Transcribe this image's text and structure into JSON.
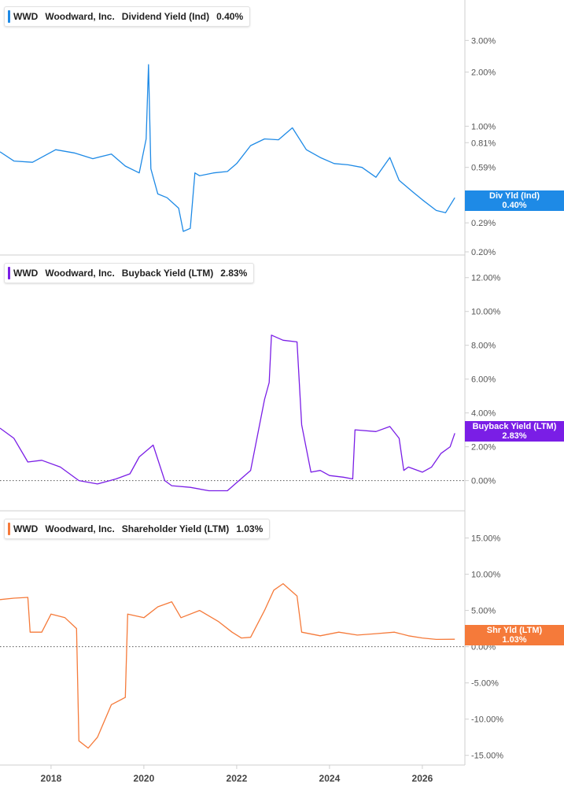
{
  "colors": {
    "dividend": "#1e8ae6",
    "buyback": "#7a1ee6",
    "shareholder": "#f57a3a"
  },
  "x_axis": {
    "ticks": [
      "2018",
      "2020",
      "2022",
      "2024",
      "2026"
    ]
  },
  "chart_data": [
    {
      "type": "line",
      "legend": {
        "ticker": "WWD",
        "company": "Woodward, Inc.",
        "metric": "Dividend Yield (Ind)",
        "value": "0.40%"
      },
      "tag": {
        "label": "Div Yld (Ind)",
        "value": "0.40%"
      },
      "y_scale": "log",
      "ylim": [
        0.2,
        4.2
      ],
      "y_ticks": [
        "3.00%",
        "2.00%",
        "1.00%",
        "0.81%",
        "0.59%",
        "0.37%",
        "0.29%",
        "0.20%"
      ],
      "y_tick_values": [
        3.0,
        2.0,
        1.0,
        0.81,
        0.59,
        0.37,
        0.29,
        0.2
      ],
      "x": [
        2016.9,
        2017.2,
        2017.6,
        2018.1,
        2018.5,
        2018.9,
        2019.3,
        2019.6,
        2019.9,
        2020.05,
        2020.1,
        2020.15,
        2020.3,
        2020.5,
        2020.75,
        2020.85,
        2021.0,
        2021.1,
        2021.2,
        2021.5,
        2021.8,
        2022.0,
        2022.3,
        2022.6,
        2022.9,
        2023.2,
        2023.5,
        2023.8,
        2024.1,
        2024.4,
        2024.7,
        2025.0,
        2025.3,
        2025.5,
        2025.8,
        2026.0,
        2026.3,
        2026.5,
        2026.7
      ],
      "y": [
        0.72,
        0.64,
        0.63,
        0.74,
        0.71,
        0.66,
        0.7,
        0.6,
        0.55,
        0.85,
        2.2,
        0.58,
        0.42,
        0.4,
        0.35,
        0.26,
        0.27,
        0.55,
        0.53,
        0.55,
        0.56,
        0.62,
        0.78,
        0.85,
        0.84,
        0.98,
        0.74,
        0.67,
        0.62,
        0.61,
        0.59,
        0.52,
        0.67,
        0.5,
        0.43,
        0.39,
        0.34,
        0.33,
        0.4
      ]
    },
    {
      "type": "line",
      "legend": {
        "ticker": "WWD",
        "company": "Woodward, Inc.",
        "metric": "Buyback Yield (LTM)",
        "value": "2.83%"
      },
      "tag": {
        "label": "Buyback Yield (LTM)",
        "value": "2.83%"
      },
      "y_scale": "linear",
      "ylim": [
        -1.6,
        12.5
      ],
      "y_ticks": [
        "12.00%",
        "10.00%",
        "8.00%",
        "6.00%",
        "4.00%",
        "2.00%",
        "0.00%"
      ],
      "y_tick_values": [
        12,
        10,
        8,
        6,
        4,
        2,
        0
      ],
      "zero_line": true,
      "x": [
        2016.9,
        2017.2,
        2017.5,
        2017.8,
        2018.2,
        2018.6,
        2019.0,
        2019.4,
        2019.7,
        2019.9,
        2020.2,
        2020.45,
        2020.6,
        2021.0,
        2021.4,
        2021.8,
        2022.05,
        2022.3,
        2022.6,
        2022.7,
        2022.75,
        2023.0,
        2023.3,
        2023.4,
        2023.6,
        2023.8,
        2024.0,
        2024.3,
        2024.5,
        2024.55,
        2025.0,
        2025.3,
        2025.5,
        2025.6,
        2025.7,
        2026.0,
        2026.2,
        2026.4,
        2026.6,
        2026.7
      ],
      "y": [
        3.1,
        2.5,
        1.1,
        1.2,
        0.8,
        0.0,
        -0.2,
        0.1,
        0.4,
        1.4,
        2.1,
        0.0,
        -0.3,
        -0.4,
        -0.6,
        -0.6,
        0.0,
        0.6,
        4.8,
        5.8,
        8.6,
        8.3,
        8.2,
        3.3,
        0.5,
        0.6,
        0.3,
        0.2,
        0.1,
        3.0,
        2.9,
        3.2,
        2.5,
        0.6,
        0.8,
        0.5,
        0.8,
        1.6,
        2.0,
        2.8
      ]
    },
    {
      "type": "line",
      "legend": {
        "ticker": "WWD",
        "company": "Woodward, Inc.",
        "metric": "Shareholder Yield (LTM)",
        "value": "1.03%"
      },
      "tag": {
        "label": "Shr Yld (LTM)",
        "value": "1.03%"
      },
      "y_scale": "linear",
      "ylim": [
        -15.9,
        16.8
      ],
      "y_ticks": [
        "15.00%",
        "10.00%",
        "5.00%",
        "0.00%",
        "-5.00%",
        "-10.00%",
        "-15.00%"
      ],
      "y_tick_values": [
        15,
        10,
        5,
        0,
        -5,
        -10,
        -15
      ],
      "zero_line": true,
      "x": [
        2016.9,
        2017.2,
        2017.5,
        2017.55,
        2017.8,
        2018.0,
        2018.3,
        2018.55,
        2018.6,
        2018.8,
        2019.0,
        2019.3,
        2019.6,
        2019.65,
        2020.0,
        2020.3,
        2020.6,
        2020.8,
        2021.2,
        2021.6,
        2021.9,
        2022.1,
        2022.3,
        2022.6,
        2022.8,
        2023.0,
        2023.3,
        2023.4,
        2023.8,
        2024.2,
        2024.6,
        2025.0,
        2025.4,
        2025.7,
        2026.0,
        2026.3,
        2026.7
      ],
      "y": [
        6.5,
        6.7,
        6.8,
        2.0,
        2.0,
        4.5,
        4.0,
        2.5,
        -13.0,
        -14.0,
        -12.5,
        -8.0,
        -7.0,
        4.5,
        4.0,
        5.5,
        6.2,
        4.0,
        5.0,
        3.5,
        2.0,
        1.2,
        1.3,
        5.0,
        7.8,
        8.7,
        7.0,
        2.0,
        1.5,
        2.0,
        1.6,
        1.8,
        2.0,
        1.5,
        1.2,
        1.0,
        1.03
      ]
    }
  ]
}
